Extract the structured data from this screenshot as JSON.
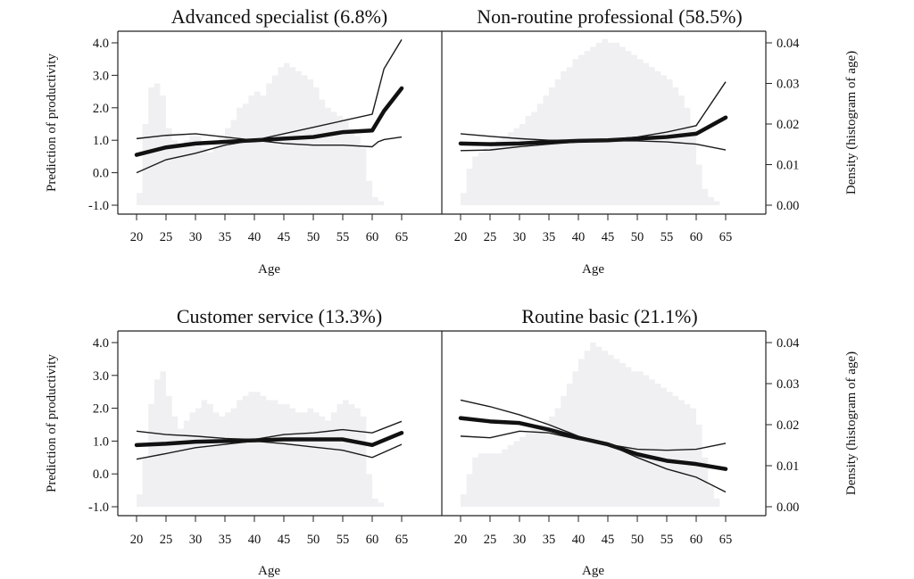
{
  "chart_data": [
    {
      "type": "line",
      "title": "Advanced specialist (6.8%)",
      "xlabel": "Age",
      "ylabel": "Prediction of productivity",
      "y2label": "",
      "x": [
        20,
        25,
        30,
        35,
        40,
        45,
        50,
        55,
        60,
        61,
        62,
        65
      ],
      "ylim": [
        -1.0,
        4.0
      ],
      "yticks": [
        "4.0",
        "3.0",
        "2.0",
        "1.0",
        "0.0",
        "-1.0"
      ],
      "xticks": [
        "20",
        "25",
        "30",
        "35",
        "40",
        "45",
        "50",
        "55",
        "60",
        "65"
      ],
      "series": [
        {
          "values": [
            0.55,
            0.78,
            0.9,
            0.95,
            1.0,
            1.05,
            1.1,
            1.25,
            1.3,
            1.6,
            1.9,
            2.6
          ]
        },
        {
          "values": [
            1.05,
            1.15,
            1.2,
            1.1,
            1.0,
            1.2,
            1.4,
            1.6,
            1.8,
            2.5,
            3.2,
            4.1
          ]
        },
        {
          "values": [
            0.0,
            0.4,
            0.6,
            0.85,
            1.0,
            0.9,
            0.85,
            0.85,
            0.8,
            0.95,
            1.02,
            1.1
          ]
        }
      ],
      "histogram": {
        "bins": [
          20,
          21,
          22,
          23,
          24,
          25,
          26,
          27,
          28,
          29,
          30,
          31,
          32,
          33,
          34,
          35,
          36,
          37,
          38,
          39,
          40,
          41,
          42,
          43,
          44,
          45,
          46,
          47,
          48,
          49,
          50,
          51,
          52,
          53,
          54,
          55,
          56,
          57,
          58,
          59,
          60,
          61,
          62,
          63,
          64
        ],
        "density": [
          0.003,
          0.02,
          0.029,
          0.03,
          0.027,
          0.019,
          0.016,
          0.015,
          0.016,
          0.017,
          0.017,
          0.014,
          0.013,
          0.015,
          0.017,
          0.019,
          0.021,
          0.024,
          0.025,
          0.027,
          0.028,
          0.027,
          0.03,
          0.032,
          0.034,
          0.035,
          0.034,
          0.033,
          0.032,
          0.031,
          0.029,
          0.026,
          0.024,
          0.023,
          0.022,
          0.021,
          0.019,
          0.017,
          0.014,
          0.006,
          0.002,
          0.001,
          0.0,
          0.0,
          0.0
        ]
      }
    },
    {
      "type": "line",
      "title": "Non-routine professional (58.5%)",
      "xlabel": "Age",
      "ylabel": "",
      "y2label": "Density (histogram of age)",
      "x": [
        20,
        25,
        30,
        35,
        40,
        45,
        50,
        55,
        60,
        65
      ],
      "ylim": [
        -1.0,
        4.0
      ],
      "y2lim": [
        0.0,
        0.04
      ],
      "y2ticks": [
        "0.04",
        "0.03",
        "0.02",
        "0.01",
        "0.00"
      ],
      "xticks": [
        "20",
        "25",
        "30",
        "35",
        "40",
        "45",
        "50",
        "55",
        "60",
        "65"
      ],
      "series": [
        {
          "values": [
            0.9,
            0.88,
            0.9,
            0.95,
            0.98,
            1.0,
            1.05,
            1.1,
            1.2,
            1.7
          ]
        },
        {
          "values": [
            1.2,
            1.12,
            1.05,
            1.0,
            1.0,
            1.02,
            1.1,
            1.25,
            1.45,
            2.8
          ]
        },
        {
          "values": [
            0.68,
            0.7,
            0.8,
            0.88,
            0.95,
            0.98,
            0.98,
            0.95,
            0.88,
            0.7
          ]
        }
      ],
      "histogram": {
        "bins": [
          20,
          21,
          22,
          23,
          24,
          25,
          26,
          27,
          28,
          29,
          30,
          31,
          32,
          33,
          34,
          35,
          36,
          37,
          38,
          39,
          40,
          41,
          42,
          43,
          44,
          45,
          46,
          47,
          48,
          49,
          50,
          51,
          52,
          53,
          54,
          55,
          56,
          57,
          58,
          59,
          60,
          61,
          62,
          63,
          64
        ],
        "density": [
          0.003,
          0.009,
          0.012,
          0.013,
          0.014,
          0.015,
          0.016,
          0.017,
          0.018,
          0.019,
          0.02,
          0.022,
          0.023,
          0.025,
          0.027,
          0.029,
          0.031,
          0.033,
          0.034,
          0.036,
          0.037,
          0.038,
          0.039,
          0.04,
          0.041,
          0.04,
          0.04,
          0.039,
          0.038,
          0.037,
          0.036,
          0.035,
          0.034,
          0.033,
          0.032,
          0.031,
          0.029,
          0.027,
          0.024,
          0.019,
          0.01,
          0.004,
          0.002,
          0.001,
          0.0
        ]
      }
    },
    {
      "type": "line",
      "title": "Customer service (13.3%)",
      "xlabel": "Age",
      "ylabel": "Prediction of productivity",
      "y2label": "",
      "x": [
        20,
        25,
        30,
        35,
        40,
        45,
        50,
        55,
        60,
        65
      ],
      "ylim": [
        -1.0,
        4.0
      ],
      "yticks": [
        "4.0",
        "3.0",
        "2.0",
        "1.0",
        "0.0",
        "-1.0"
      ],
      "xticks": [
        "20",
        "25",
        "30",
        "35",
        "40",
        "45",
        "50",
        "55",
        "60",
        "65"
      ],
      "series": [
        {
          "values": [
            0.88,
            0.92,
            0.98,
            1.0,
            1.02,
            1.05,
            1.05,
            1.05,
            0.88,
            1.25
          ]
        },
        {
          "values": [
            1.3,
            1.2,
            1.15,
            1.08,
            1.05,
            1.2,
            1.25,
            1.35,
            1.25,
            1.6
          ]
        },
        {
          "values": [
            0.45,
            0.62,
            0.8,
            0.9,
            1.0,
            0.92,
            0.82,
            0.72,
            0.5,
            0.9
          ]
        }
      ],
      "histogram": {
        "bins": [
          20,
          21,
          22,
          23,
          24,
          25,
          26,
          27,
          28,
          29,
          30,
          31,
          32,
          33,
          34,
          35,
          36,
          37,
          38,
          39,
          40,
          41,
          42,
          43,
          44,
          45,
          46,
          47,
          48,
          49,
          50,
          51,
          52,
          53,
          54,
          55,
          56,
          57,
          58,
          59,
          60,
          61,
          62,
          63,
          64
        ],
        "density": [
          0.003,
          0.012,
          0.025,
          0.031,
          0.033,
          0.027,
          0.022,
          0.019,
          0.021,
          0.023,
          0.024,
          0.026,
          0.025,
          0.023,
          0.022,
          0.023,
          0.024,
          0.026,
          0.027,
          0.028,
          0.028,
          0.027,
          0.026,
          0.026,
          0.025,
          0.025,
          0.024,
          0.023,
          0.023,
          0.024,
          0.023,
          0.022,
          0.021,
          0.023,
          0.025,
          0.026,
          0.025,
          0.024,
          0.022,
          0.008,
          0.002,
          0.001,
          0.0,
          0.0,
          0.0
        ]
      }
    },
    {
      "type": "line",
      "title": "Routine basic (21.1%)",
      "xlabel": "Age",
      "ylabel": "",
      "y2label": "Density (histogram of age)",
      "x": [
        20,
        25,
        30,
        35,
        40,
        45,
        50,
        55,
        60,
        65
      ],
      "ylim": [
        -1.0,
        4.0
      ],
      "y2lim": [
        0.0,
        0.04
      ],
      "y2ticks": [
        "0.04",
        "0.03",
        "0.02",
        "0.01",
        "0.00"
      ],
      "xticks": [
        "20",
        "25",
        "30",
        "35",
        "40",
        "45",
        "50",
        "55",
        "60",
        "65"
      ],
      "series": [
        {
          "values": [
            1.7,
            1.6,
            1.55,
            1.35,
            1.1,
            0.9,
            0.6,
            0.4,
            0.3,
            0.15
          ]
        },
        {
          "values": [
            2.25,
            2.05,
            1.8,
            1.5,
            1.15,
            0.9,
            0.75,
            0.72,
            0.75,
            0.93
          ]
        },
        {
          "values": [
            1.15,
            1.1,
            1.3,
            1.25,
            1.05,
            0.9,
            0.5,
            0.15,
            -0.1,
            -0.55
          ]
        }
      ],
      "histogram": {
        "bins": [
          20,
          21,
          22,
          23,
          24,
          25,
          26,
          27,
          28,
          29,
          30,
          31,
          32,
          33,
          34,
          35,
          36,
          37,
          38,
          39,
          40,
          41,
          42,
          43,
          44,
          45,
          46,
          47,
          48,
          49,
          50,
          51,
          52,
          53,
          54,
          55,
          56,
          57,
          58,
          59,
          60,
          61,
          62,
          63,
          64
        ],
        "density": [
          0.003,
          0.008,
          0.012,
          0.013,
          0.013,
          0.013,
          0.013,
          0.014,
          0.015,
          0.016,
          0.017,
          0.018,
          0.019,
          0.02,
          0.021,
          0.022,
          0.024,
          0.027,
          0.03,
          0.033,
          0.036,
          0.038,
          0.04,
          0.039,
          0.038,
          0.037,
          0.036,
          0.035,
          0.034,
          0.033,
          0.033,
          0.032,
          0.031,
          0.03,
          0.029,
          0.028,
          0.027,
          0.026,
          0.025,
          0.024,
          0.02,
          0.012,
          0.005,
          0.002,
          0.0
        ]
      }
    }
  ]
}
